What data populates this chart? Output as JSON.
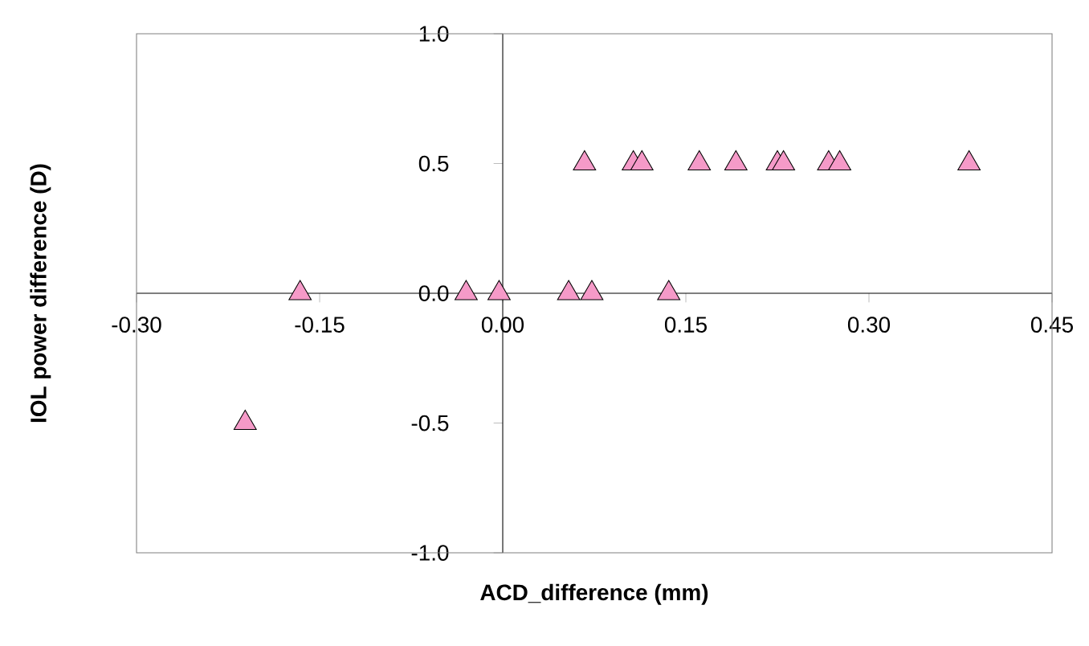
{
  "chart_data": {
    "type": "scatter",
    "xlabel": "ACD_difference (mm)",
    "ylabel": "IOL power difference (D)",
    "marker": "triangle",
    "color": "#f59ac8",
    "x": [
      -0.211,
      -0.166,
      -0.03,
      -0.003,
      0.054,
      0.073,
      0.136,
      0.067,
      0.107,
      0.114,
      0.161,
      0.191,
      0.225,
      0.23,
      0.267,
      0.276,
      0.382
    ],
    "values": [
      -0.5,
      0,
      0,
      0,
      0,
      0,
      0,
      0.5,
      0.5,
      0.5,
      0.5,
      0.5,
      0.5,
      0.5,
      0.5,
      0.5,
      0.5
    ],
    "xlim": [
      -0.3,
      0.45
    ],
    "ylim": [
      -1.0,
      1.0
    ],
    "xticks": [
      {
        "value": -0.3,
        "label": "-0.30"
      },
      {
        "value": -0.15,
        "label": "-0.15"
      },
      {
        "value": 0,
        "label": "0.00"
      },
      {
        "value": 0.15,
        "label": "0.15"
      },
      {
        "value": 0.3,
        "label": "0.30"
      },
      {
        "value": 0.45,
        "label": "0.45"
      }
    ],
    "yticks": [
      {
        "value": 1.0,
        "label": "1.0"
      },
      {
        "value": 0.5,
        "label": "0.5"
      },
      {
        "value": 0,
        "label": "0.0"
      },
      {
        "value": -0.5,
        "label": "-0.5"
      },
      {
        "value": -1.0,
        "label": "-1.0"
      }
    ]
  }
}
